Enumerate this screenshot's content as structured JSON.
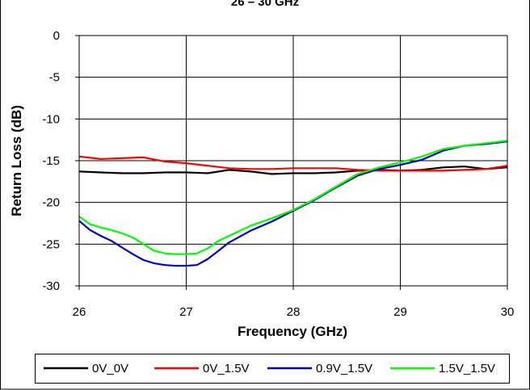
{
  "chart_data": {
    "type": "line",
    "title": "26 – 30 GHz",
    "xlabel": "Frequency (GHz)",
    "ylabel": "Return Loss (dB)",
    "xlim": [
      26,
      30
    ],
    "ylim": [
      -30,
      0
    ],
    "x_ticks": [
      "26",
      "27",
      "28",
      "29",
      "30"
    ],
    "y_ticks": [
      "0",
      "-5",
      "-10",
      "-15",
      "-20",
      "-25",
      "-30"
    ],
    "grid": true,
    "legend_position": "bottom",
    "series": [
      {
        "name": "0V_0V",
        "color": "#000000",
        "x": [
          26.0,
          26.2,
          26.4,
          26.6,
          26.8,
          27.0,
          27.2,
          27.4,
          27.6,
          27.8,
          28.0,
          28.2,
          28.4,
          28.6,
          28.8,
          29.0,
          29.2,
          29.4,
          29.6,
          29.8,
          30.0
        ],
        "y": [
          -16.3,
          -16.4,
          -16.5,
          -16.5,
          -16.4,
          -16.4,
          -16.5,
          -16.1,
          -16.3,
          -16.6,
          -16.5,
          -16.5,
          -16.4,
          -16.2,
          -16.1,
          -16.2,
          -16.1,
          -15.8,
          -15.7,
          -16.0,
          -15.8
        ]
      },
      {
        "name": "0V_1.5V",
        "color": "#ff0000",
        "x": [
          26.0,
          26.2,
          26.4,
          26.6,
          26.8,
          27.0,
          27.2,
          27.4,
          27.6,
          27.8,
          28.0,
          28.2,
          28.4,
          28.6,
          28.8,
          29.0,
          29.2,
          29.4,
          29.6,
          29.8,
          30.0
        ],
        "y": [
          -14.5,
          -14.8,
          -14.7,
          -14.6,
          -15.1,
          -15.3,
          -15.6,
          -15.9,
          -16.0,
          -16.0,
          -15.9,
          -15.9,
          -15.9,
          -16.1,
          -16.2,
          -16.2,
          -16.2,
          -16.2,
          -16.1,
          -16.0,
          -15.6
        ]
      },
      {
        "name": "0.9V_1.5V",
        "color": "#0000cc",
        "x": [
          26.0,
          26.1,
          26.2,
          26.3,
          26.4,
          26.5,
          26.6,
          26.7,
          26.8,
          26.9,
          27.0,
          27.1,
          27.2,
          27.3,
          27.4,
          27.6,
          27.8,
          28.0,
          28.2,
          28.4,
          28.6,
          28.8,
          29.0,
          29.2,
          29.4,
          29.6,
          29.8,
          30.0
        ],
        "y": [
          -22.2,
          -23.3,
          -24.0,
          -24.6,
          -25.4,
          -26.2,
          -26.9,
          -27.3,
          -27.5,
          -27.6,
          -27.6,
          -27.5,
          -26.8,
          -25.8,
          -24.8,
          -23.4,
          -22.3,
          -21.0,
          -19.7,
          -18.2,
          -16.8,
          -16.0,
          -15.5,
          -14.9,
          -13.8,
          -13.2,
          -13.0,
          -12.7
        ]
      },
      {
        "name": "1.5V_1.5V",
        "color": "#00ff00",
        "x": [
          26.0,
          26.1,
          26.2,
          26.3,
          26.4,
          26.5,
          26.6,
          26.7,
          26.8,
          26.9,
          27.0,
          27.1,
          27.2,
          27.3,
          27.4,
          27.6,
          27.8,
          28.0,
          28.2,
          28.4,
          28.6,
          28.8,
          29.0,
          29.2,
          29.4,
          29.6,
          29.8,
          30.0
        ],
        "y": [
          -21.7,
          -22.6,
          -23.0,
          -23.3,
          -23.7,
          -24.2,
          -25.0,
          -25.8,
          -26.1,
          -26.2,
          -26.2,
          -26.1,
          -25.5,
          -24.6,
          -24.0,
          -22.8,
          -21.9,
          -20.9,
          -19.6,
          -18.1,
          -16.6,
          -15.8,
          -15.2,
          -14.5,
          -13.6,
          -13.2,
          -12.9,
          -12.6
        ]
      }
    ]
  }
}
